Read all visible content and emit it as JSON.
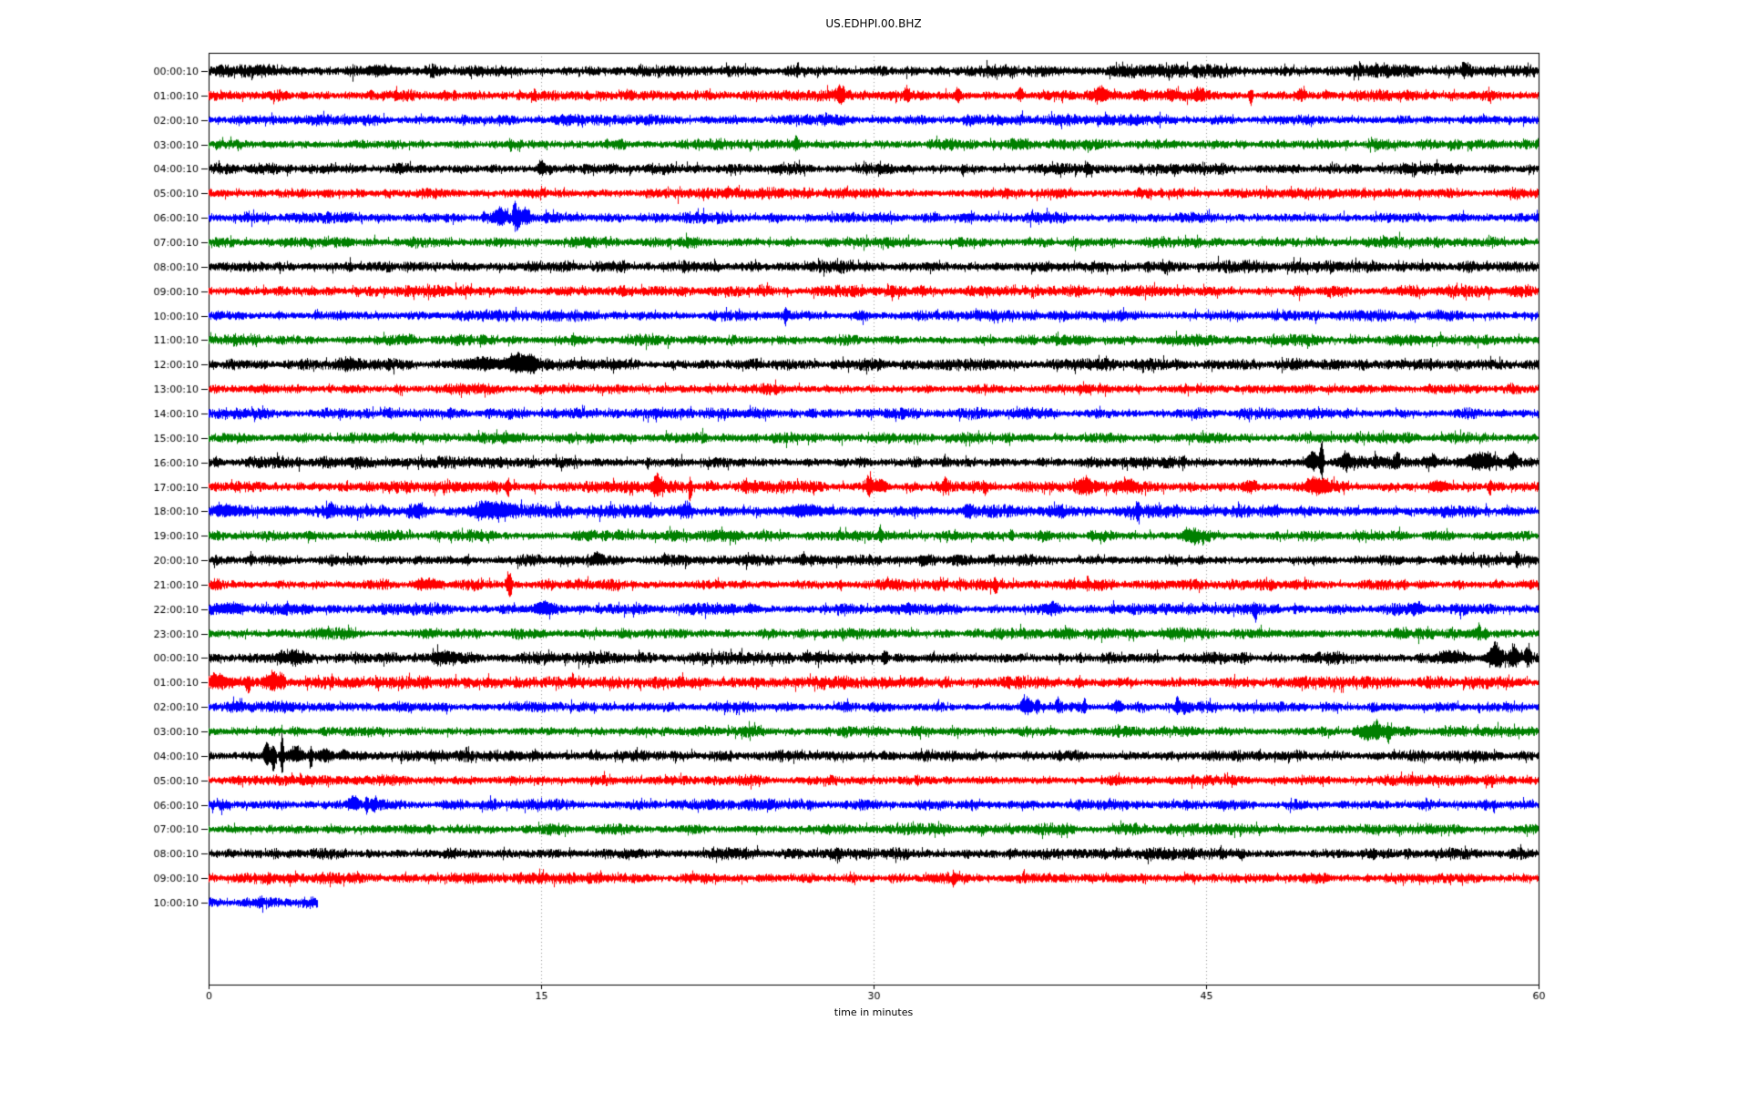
{
  "page": {
    "background": "#ffffff"
  },
  "chart_data": {
    "type": "line",
    "variant": "seismic-dayplot-helicorder",
    "title": "US.EDHPI.00.BHZ",
    "xlabel": "time in minutes",
    "xlim": [
      0,
      60
    ],
    "xticks": [
      0,
      15,
      30,
      45,
      60
    ],
    "grid_minutes": [
      15,
      30,
      45
    ],
    "grid_on": true,
    "legend": "none",
    "minutes_per_row": 60,
    "colors": {
      "axis": "#000000",
      "grid": "#999999",
      "text": "#000000",
      "background": "#ffffff"
    },
    "trace_color_cycle": [
      "#000000",
      "#ff0000",
      "#0000ff",
      "#008000"
    ],
    "events_format": "[minute, amplitude_px (sign = dominant direction), width_minutes]",
    "rows": [
      {
        "label": "00:00:10",
        "color": "#000000",
        "noise": 1.15,
        "end": 60,
        "events": [
          [
            2.3,
            2,
            0.4
          ],
          [
            7.7,
            3,
            0.6
          ],
          [
            52.7,
            4,
            0.05
          ],
          [
            56.6,
            7,
            0.07
          ]
        ]
      },
      {
        "label": "01:00:10",
        "color": "#ff0000",
        "noise": 1.0,
        "end": 60,
        "events": [
          [
            14.7,
            -5,
            0.05
          ],
          [
            28.5,
            7,
            0.12
          ],
          [
            31.5,
            6,
            0.1
          ],
          [
            33.8,
            5,
            0.08
          ],
          [
            36.6,
            6,
            0.1
          ],
          [
            40.3,
            5,
            0.25
          ],
          [
            42.0,
            4,
            0.2
          ],
          [
            43.4,
            4,
            0.15
          ],
          [
            44.7,
            5,
            0.15
          ],
          [
            47.0,
            -8,
            0.05
          ],
          [
            49.3,
            5,
            0.12
          ],
          [
            50.4,
            4,
            0.1
          ]
        ]
      },
      {
        "label": "02:00:10",
        "color": "#0000ff",
        "noise": 1.0,
        "end": 60,
        "events": []
      },
      {
        "label": "03:00:10",
        "color": "#008000",
        "noise": 1.0,
        "end": 60,
        "events": [
          [
            26.5,
            6,
            0.07
          ]
        ]
      },
      {
        "label": "04:00:10",
        "color": "#000000",
        "noise": 1.0,
        "end": 60,
        "events": [
          [
            15.0,
            7,
            0.12
          ],
          [
            15.4,
            -4,
            0.06
          ],
          [
            34.0,
            -5,
            0.05
          ]
        ]
      },
      {
        "label": "05:00:10",
        "color": "#ff0000",
        "noise": 1.0,
        "end": 60,
        "events": []
      },
      {
        "label": "06:00:10",
        "color": "#0000ff",
        "noise": 1.0,
        "end": 60,
        "events": [
          [
            12.4,
            5,
            0.05
          ],
          [
            13.1,
            6,
            0.2
          ],
          [
            13.8,
            13,
            0.06
          ],
          [
            13.95,
            -10,
            0.07
          ],
          [
            14.3,
            6,
            0.15
          ],
          [
            15.2,
            4,
            0.05
          ]
        ]
      },
      {
        "label": "07:00:10",
        "color": "#008000",
        "noise": 1.0,
        "end": 60,
        "events": []
      },
      {
        "label": "08:00:10",
        "color": "#000000",
        "noise": 1.1,
        "end": 60,
        "events": []
      },
      {
        "label": "09:00:10",
        "color": "#ff0000",
        "noise": 1.0,
        "end": 60,
        "events": []
      },
      {
        "label": "10:00:10",
        "color": "#0000ff",
        "noise": 1.0,
        "end": 60,
        "events": [
          [
            26.0,
            -6,
            0.05
          ]
        ]
      },
      {
        "label": "11:00:10",
        "color": "#008000",
        "noise": 1.0,
        "end": 60,
        "events": []
      },
      {
        "label": "12:00:10",
        "color": "#000000",
        "noise": 1.05,
        "end": 60,
        "events": [
          [
            6.3,
            3,
            0.3
          ],
          [
            12.5,
            4,
            1.0
          ],
          [
            14.0,
            6,
            0.35
          ],
          [
            14.6,
            4,
            0.2
          ]
        ]
      },
      {
        "label": "13:00:10",
        "color": "#ff0000",
        "noise": 1.0,
        "end": 60,
        "events": []
      },
      {
        "label": "14:00:10",
        "color": "#0000ff",
        "noise": 1.0,
        "end": 60,
        "events": []
      },
      {
        "label": "15:00:10",
        "color": "#008000",
        "noise": 1.0,
        "end": 60,
        "events": []
      },
      {
        "label": "16:00:10",
        "color": "#000000",
        "noise": 1.05,
        "end": 60,
        "events": [
          [
            19.8,
            -6,
            0.04
          ],
          [
            44.0,
            4,
            0.05
          ],
          [
            49.8,
            7,
            0.2
          ],
          [
            50.2,
            22,
            0.06
          ],
          [
            51.3,
            6,
            0.2
          ],
          [
            52.6,
            5,
            0.06
          ],
          [
            53.6,
            6,
            0.07
          ],
          [
            55.3,
            5,
            0.07
          ],
          [
            57.3,
            6,
            0.5
          ],
          [
            58.8,
            7,
            0.15
          ]
        ]
      },
      {
        "label": "17:00:10",
        "color": "#ff0000",
        "noise": 1.1,
        "end": 60,
        "events": [
          [
            13.5,
            -6,
            0.05
          ],
          [
            20.2,
            8,
            0.15
          ],
          [
            21.7,
            -14,
            0.04
          ],
          [
            24.2,
            4,
            0.1
          ],
          [
            29.8,
            8,
            0.1
          ],
          [
            30.3,
            5,
            0.2
          ],
          [
            33.2,
            5,
            0.1
          ],
          [
            35.0,
            -5,
            0.05
          ],
          [
            39.5,
            5,
            0.3
          ],
          [
            41.5,
            5,
            0.25
          ],
          [
            47.0,
            4,
            0.2
          ],
          [
            50.0,
            5,
            0.4
          ],
          [
            55.5,
            4,
            0.3
          ],
          [
            57.8,
            -6,
            0.05
          ]
        ]
      },
      {
        "label": "18:00:10",
        "color": "#0000ff",
        "noise": 1.15,
        "end": 60,
        "events": [
          [
            0.8,
            4,
            0.5
          ],
          [
            3.5,
            3,
            0.2
          ],
          [
            5.5,
            4,
            0.15
          ],
          [
            9.5,
            3,
            0.15
          ],
          [
            12.7,
            6,
            0.45
          ],
          [
            13.5,
            4,
            0.2
          ],
          [
            21.5,
            4,
            0.2
          ],
          [
            26.8,
            4,
            0.6
          ],
          [
            34.3,
            5,
            0.15
          ],
          [
            41.9,
            -6,
            0.07
          ],
          [
            48.0,
            3,
            0.3
          ]
        ]
      },
      {
        "label": "19:00:10",
        "color": "#008000",
        "noise": 1.0,
        "end": 60,
        "events": [
          [
            18.5,
            4,
            0.08
          ],
          [
            30.3,
            5,
            0.07
          ],
          [
            36.2,
            5,
            0.06
          ],
          [
            44.1,
            5,
            0.15
          ],
          [
            44.5,
            -4,
            0.1
          ]
        ]
      },
      {
        "label": "20:00:10",
        "color": "#000000",
        "noise": 1.0,
        "end": 60,
        "events": [
          [
            1.9,
            5,
            0.07
          ],
          [
            17.5,
            4,
            0.2
          ],
          [
            26.8,
            5,
            0.08
          ],
          [
            32.2,
            -5,
            0.06
          ],
          [
            59.0,
            7,
            0.07
          ]
        ]
      },
      {
        "label": "21:00:10",
        "color": "#ff0000",
        "noise": 1.0,
        "end": 60,
        "events": [
          [
            10.0,
            4,
            0.3
          ],
          [
            13.5,
            8,
            0.06
          ],
          [
            13.6,
            -10,
            0.05
          ],
          [
            28.5,
            -4,
            0.05
          ],
          [
            35.5,
            -6,
            0.06
          ]
        ]
      },
      {
        "label": "22:00:10",
        "color": "#0000ff",
        "noise": 1.05,
        "end": 60,
        "events": [
          [
            1.0,
            4,
            0.5
          ],
          [
            15.0,
            6,
            0.25
          ],
          [
            24.5,
            3,
            0.2
          ],
          [
            31.5,
            3,
            0.2
          ],
          [
            38.0,
            4,
            0.25
          ],
          [
            47.2,
            -7,
            0.07
          ],
          [
            49.0,
            4,
            0.05
          ],
          [
            54.5,
            3,
            0.2
          ]
        ]
      },
      {
        "label": "23:00:10",
        "color": "#008000",
        "noise": 1.0,
        "end": 60,
        "events": [
          [
            57.3,
            6,
            0.06
          ],
          [
            57.6,
            -4,
            0.08
          ]
        ]
      },
      {
        "label": "00:00:10",
        "color": "#000000",
        "noise": 1.1,
        "end": 60,
        "events": [
          [
            3.3,
            4,
            0.12
          ],
          [
            3.9,
            4,
            0.25
          ],
          [
            10.5,
            3,
            0.3
          ],
          [
            30.5,
            5,
            0.09
          ],
          [
            56.0,
            5,
            0.3
          ],
          [
            58.0,
            11,
            0.2
          ],
          [
            58.9,
            9,
            0.12
          ],
          [
            59.5,
            8,
            0.1
          ]
        ]
      },
      {
        "label": "01:00:10",
        "color": "#ff0000",
        "noise": 1.1,
        "end": 60,
        "events": [
          [
            0.4,
            6,
            0.35
          ],
          [
            1.8,
            -8,
            0.05
          ],
          [
            2.9,
            8,
            0.22
          ],
          [
            3.3,
            5,
            0.1
          ]
        ]
      },
      {
        "label": "02:00:10",
        "color": "#0000ff",
        "noise": 1.0,
        "end": 60,
        "events": [
          [
            36.9,
            8,
            0.18
          ],
          [
            37.4,
            7,
            0.07
          ],
          [
            38.3,
            5,
            0.05
          ],
          [
            39.5,
            6,
            0.06
          ],
          [
            41.0,
            6,
            0.12
          ],
          [
            43.7,
            10,
            0.06
          ],
          [
            44.0,
            -5,
            0.1
          ],
          [
            52.5,
            -5,
            0.05
          ]
        ]
      },
      {
        "label": "03:00:10",
        "color": "#008000",
        "noise": 1.0,
        "end": 60,
        "events": [
          [
            52.2,
            -6,
            0.25
          ],
          [
            52.7,
            6,
            0.15
          ],
          [
            53.2,
            -8,
            0.07
          ]
        ]
      },
      {
        "label": "04:00:10",
        "color": "#000000",
        "noise": 1.0,
        "end": 60,
        "events": [
          [
            2.6,
            13,
            0.1
          ],
          [
            2.9,
            -11,
            0.08
          ],
          [
            3.3,
            27,
            0.04
          ],
          [
            3.9,
            7,
            0.25
          ],
          [
            4.6,
            -12,
            0.04
          ],
          [
            5.2,
            5,
            0.25
          ],
          [
            6.1,
            4,
            0.15
          ]
        ]
      },
      {
        "label": "05:00:10",
        "color": "#ff0000",
        "noise": 1.0,
        "end": 60,
        "events": []
      },
      {
        "label": "06:00:10",
        "color": "#0000ff",
        "noise": 1.0,
        "end": 60,
        "events": [
          [
            6.5,
            6,
            0.2
          ],
          [
            7.1,
            -8,
            0.05
          ],
          [
            7.5,
            5,
            0.08
          ]
        ]
      },
      {
        "label": "07:00:10",
        "color": "#008000",
        "noise": 1.0,
        "end": 60,
        "events": []
      },
      {
        "label": "08:00:10",
        "color": "#000000",
        "noise": 1.05,
        "end": 60,
        "events": []
      },
      {
        "label": "09:00:10",
        "color": "#ff0000",
        "noise": 1.0,
        "end": 60,
        "events": [
          [
            33.6,
            -4,
            0.04
          ]
        ]
      },
      {
        "label": "10:00:10",
        "color": "#0000ff",
        "noise": 1.2,
        "end": 4.9,
        "events": []
      }
    ]
  }
}
